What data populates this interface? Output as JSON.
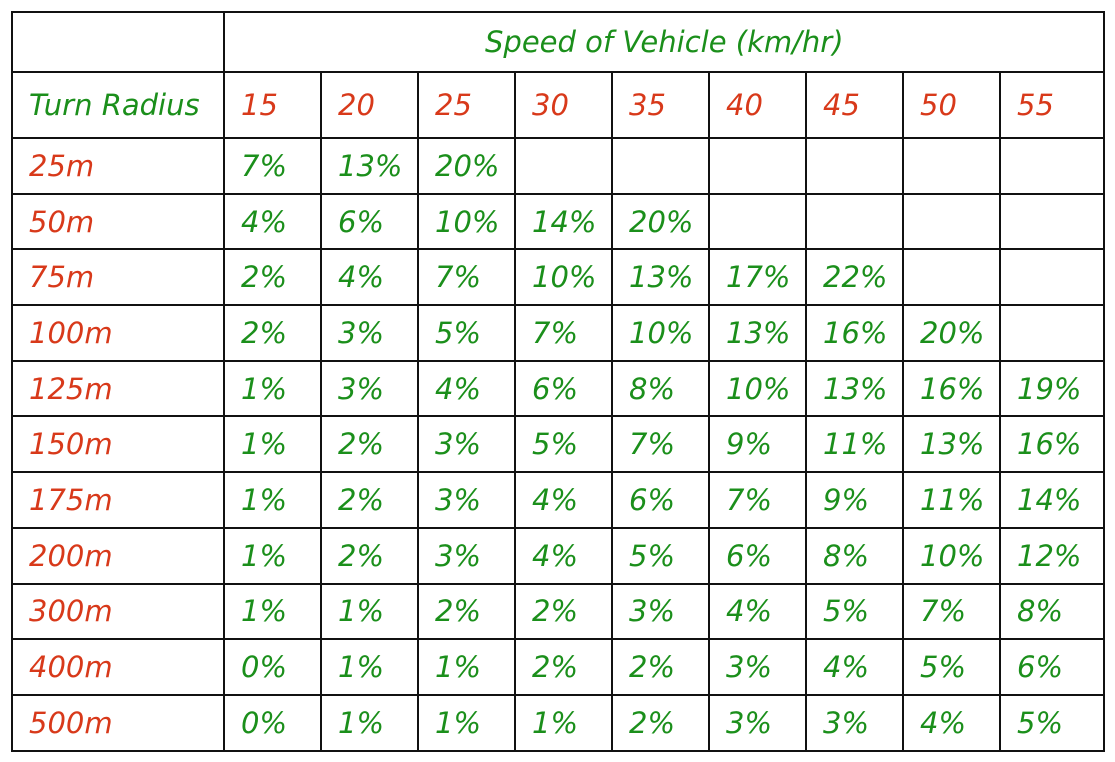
{
  "table": {
    "header_title": "Speed of Vehicle  (km/hr)",
    "row_header_label": "Turn Radius",
    "speeds": [
      "15",
      "20",
      "25",
      "30",
      "35",
      "40",
      "45",
      "50",
      "55"
    ],
    "rows": [
      {
        "radius": "25m",
        "values": [
          "7%",
          "13%",
          "20%",
          "",
          "",
          "",
          "",
          "",
          ""
        ]
      },
      {
        "radius": "50m",
        "values": [
          "4%",
          "6%",
          "10%",
          "14%",
          "20%",
          "",
          "",
          "",
          ""
        ]
      },
      {
        "radius": "75m",
        "values": [
          "2%",
          "4%",
          "7%",
          "10%",
          "13%",
          "17%",
          "22%",
          "",
          ""
        ]
      },
      {
        "radius": "100m",
        "values": [
          "2%",
          "3%",
          "5%",
          "7%",
          "10%",
          "13%",
          "16%",
          "20%",
          ""
        ]
      },
      {
        "radius": "125m",
        "values": [
          "1%",
          "3%",
          "4%",
          "6%",
          "8%",
          "10%",
          "13%",
          "16%",
          "19%"
        ]
      },
      {
        "radius": "150m",
        "values": [
          "1%",
          "2%",
          "3%",
          "5%",
          "7%",
          "9%",
          "11%",
          "13%",
          "16%"
        ]
      },
      {
        "radius": "175m",
        "values": [
          "1%",
          "2%",
          "3%",
          "4%",
          "6%",
          "7%",
          "9%",
          "11%",
          "14%"
        ]
      },
      {
        "radius": "200m",
        "values": [
          "1%",
          "2%",
          "3%",
          "4%",
          "5%",
          "6%",
          "8%",
          "10%",
          "12%"
        ]
      },
      {
        "radius": "300m",
        "values": [
          "1%",
          "1%",
          "2%",
          "2%",
          "3%",
          "4%",
          "5%",
          "7%",
          "8%"
        ]
      },
      {
        "radius": "400m",
        "values": [
          "0%",
          "1%",
          "1%",
          "2%",
          "2%",
          "3%",
          "4%",
          "5%",
          "6%"
        ]
      },
      {
        "radius": "500m",
        "values": [
          "0%",
          "1%",
          "1%",
          "1%",
          "2%",
          "3%",
          "3%",
          "4%",
          "5%"
        ]
      }
    ]
  },
  "colors": {
    "value_green": "#1b8f1b",
    "label_red": "#d8391a",
    "border": "#111111",
    "background": "#ffffff"
  }
}
